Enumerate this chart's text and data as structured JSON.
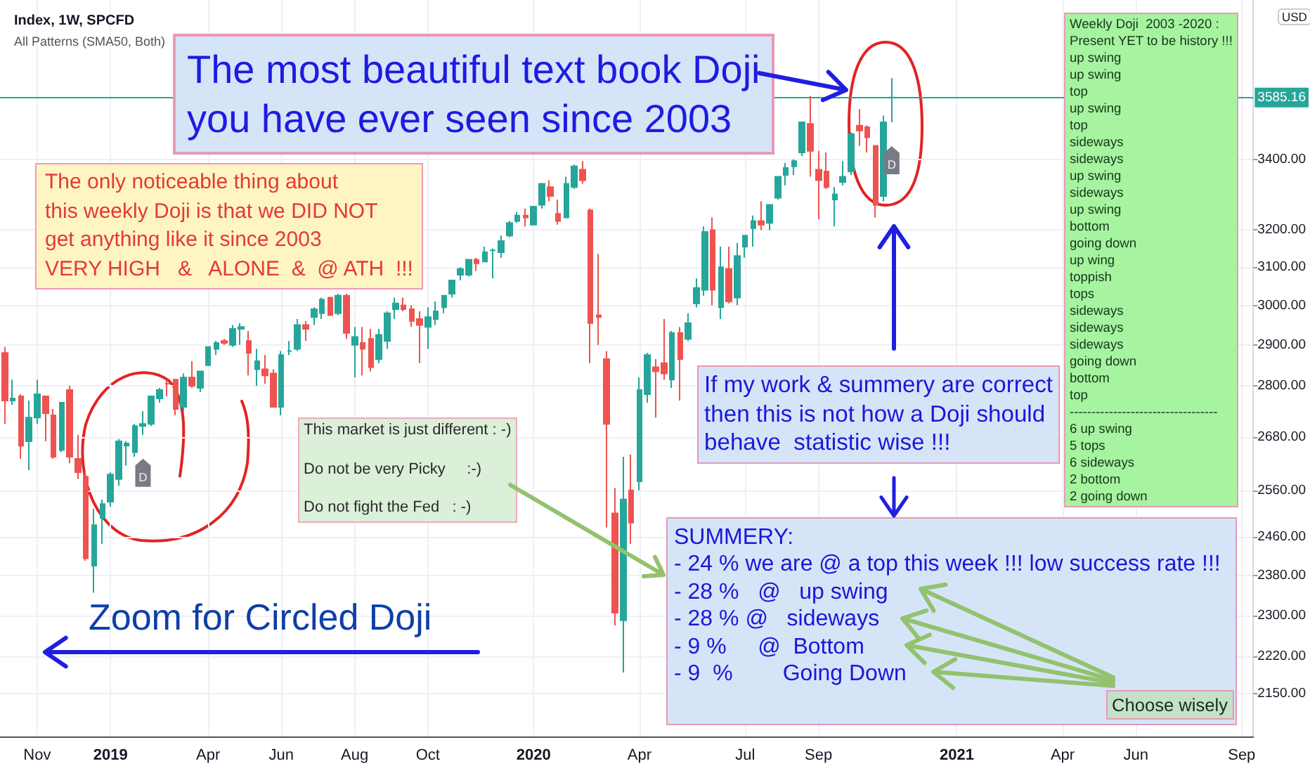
{
  "chart_data": {
    "type": "candlestick",
    "title": "Index, 1W, SPCFD",
    "subtitle": "All Patterns (SMA50, Both)",
    "ylabel": "USD",
    "x": [
      "2018-10-08",
      "2018-10-15",
      "2018-10-22",
      "2018-10-29",
      "2018-11-05",
      "2018-11-12",
      "2018-11-19",
      "2018-11-26",
      "2018-12-03",
      "2018-12-10",
      "2018-12-17",
      "2018-12-24",
      "2018-12-31",
      "2019-01-07",
      "2019-01-14",
      "2019-01-21",
      "2019-01-28",
      "2019-02-04",
      "2019-02-11",
      "2019-02-18",
      "2019-02-25",
      "2019-03-04",
      "2019-03-11",
      "2019-03-18",
      "2019-03-25",
      "2019-04-01",
      "2019-04-08",
      "2019-04-15",
      "2019-04-22",
      "2019-04-29",
      "2019-05-06",
      "2019-05-13",
      "2019-05-20",
      "2019-05-27",
      "2019-06-03",
      "2019-06-10",
      "2019-06-17",
      "2019-06-24",
      "2019-07-01",
      "2019-07-08",
      "2019-07-15",
      "2019-07-22",
      "2019-07-29",
      "2019-08-05",
      "2019-08-12",
      "2019-08-19",
      "2019-08-26",
      "2019-09-02",
      "2019-09-09",
      "2019-09-16",
      "2019-09-23",
      "2019-09-30",
      "2019-10-07",
      "2019-10-14",
      "2019-10-21",
      "2019-10-28",
      "2019-11-04",
      "2019-11-11",
      "2019-11-18",
      "2019-11-25",
      "2019-12-02",
      "2019-12-09",
      "2019-12-16",
      "2019-12-23",
      "2019-12-30",
      "2020-01-06",
      "2020-01-13",
      "2020-01-20",
      "2020-01-27",
      "2020-02-03",
      "2020-02-10",
      "2020-02-17",
      "2020-02-24",
      "2020-03-02",
      "2020-03-09",
      "2020-03-16",
      "2020-03-23",
      "2020-03-30",
      "2020-04-06",
      "2020-04-13",
      "2020-04-20",
      "2020-04-27",
      "2020-05-04",
      "2020-05-11",
      "2020-05-18",
      "2020-05-25",
      "2020-06-01",
      "2020-06-08",
      "2020-06-15",
      "2020-06-22",
      "2020-06-29",
      "2020-07-06",
      "2020-07-13",
      "2020-07-20",
      "2020-07-27",
      "2020-08-03",
      "2020-08-10",
      "2020-08-17",
      "2020-08-24",
      "2020-08-31",
      "2020-09-07",
      "2020-09-14",
      "2020-09-21",
      "2020-09-28",
      "2020-10-05",
      "2020-10-12",
      "2020-10-19",
      "2020-10-26",
      "2020-11-02",
      "2020-11-09"
    ],
    "ohlc": [
      [
        2880,
        2895,
        2710,
        2765
      ],
      [
        2765,
        2815,
        2755,
        2770
      ],
      [
        2775,
        2780,
        2630,
        2660
      ],
      [
        2670,
        2765,
        2605,
        2725
      ],
      [
        2725,
        2815,
        2710,
        2780
      ],
      [
        2775,
        2775,
        2670,
        2735
      ],
      [
        2730,
        2745,
        2630,
        2635
      ],
      [
        2650,
        2760,
        2645,
        2760
      ],
      [
        2790,
        2800,
        2620,
        2635
      ],
      [
        2630,
        2685,
        2585,
        2600
      ],
      [
        2590,
        2600,
        2410,
        2415
      ],
      [
        2400,
        2520,
        2345,
        2485
      ],
      [
        2500,
        2540,
        2445,
        2530
      ],
      [
        2535,
        2600,
        2525,
        2595
      ],
      [
        2585,
        2675,
        2570,
        2670
      ],
      [
        2660,
        2670,
        2615,
        2665
      ],
      [
        2645,
        2710,
        2635,
        2705
      ],
      [
        2705,
        2740,
        2685,
        2710
      ],
      [
        2710,
        2775,
        2705,
        2775
      ],
      [
        2770,
        2795,
        2760,
        2790
      ],
      [
        2805,
        2815,
        2775,
        2805
      ],
      [
        2815,
        2815,
        2730,
        2745
      ],
      [
        2750,
        2830,
        2740,
        2820
      ],
      [
        2820,
        2860,
        2795,
        2800
      ],
      [
        2795,
        2835,
        2785,
        2835
      ],
      [
        2850,
        2895,
        2850,
        2895
      ],
      [
        2890,
        2910,
        2875,
        2905
      ],
      [
        2910,
        2915,
        2900,
        2905
      ],
      [
        2900,
        2950,
        2895,
        2940
      ],
      [
        2940,
        2955,
        2900,
        2945
      ],
      [
        2910,
        2935,
        2825,
        2880
      ],
      [
        2840,
        2890,
        2800,
        2860
      ],
      [
        2840,
        2875,
        2805,
        2825
      ],
      [
        2830,
        2840,
        2750,
        2750
      ],
      [
        2750,
        2885,
        2730,
        2875
      ],
      [
        2885,
        2910,
        2875,
        2885
      ],
      [
        2890,
        2965,
        2885,
        2950
      ],
      [
        2950,
        2960,
        2910,
        2940
      ],
      [
        2970,
        2995,
        2950,
        2990
      ],
      [
        2980,
        3020,
        2965,
        3015
      ],
      [
        3020,
        3020,
        2975,
        2975
      ],
      [
        2980,
        3030,
        2975,
        3025
      ],
      [
        3025,
        3030,
        2915,
        2930
      ],
      [
        2900,
        2945,
        2820,
        2920
      ],
      [
        2905,
        2945,
        2825,
        2890
      ],
      [
        2915,
        2940,
        2835,
        2845
      ],
      [
        2865,
        2940,
        2855,
        2925
      ],
      [
        2910,
        2985,
        2890,
        2980
      ],
      [
        2990,
        3020,
        2965,
        3005
      ],
      [
        3000,
        3020,
        2985,
        2990
      ],
      [
        2990,
        3000,
        2945,
        2960
      ],
      [
        2965,
        2985,
        2855,
        2950
      ],
      [
        2945,
        2995,
        2890,
        2970
      ],
      [
        2965,
        3010,
        2950,
        2985
      ],
      [
        2995,
        3025,
        2980,
        3025
      ],
      [
        3030,
        3065,
        3020,
        3065
      ],
      [
        3080,
        3100,
        3065,
        3095
      ],
      [
        3080,
        3120,
        3075,
        3120
      ],
      [
        3120,
        3125,
        3090,
        3110
      ],
      [
        3115,
        3155,
        3115,
        3140
      ],
      [
        3145,
        3150,
        3070,
        3145
      ],
      [
        3140,
        3185,
        3125,
        3170
      ],
      [
        3185,
        3225,
        3180,
        3220
      ],
      [
        3225,
        3250,
        3220,
        3240
      ],
      [
        3240,
        3260,
        3210,
        3235
      ],
      [
        3215,
        3265,
        3215,
        3265
      ],
      [
        3270,
        3330,
        3260,
        3330
      ],
      [
        3320,
        3340,
        3280,
        3295
      ],
      [
        3245,
        3285,
        3215,
        3225
      ],
      [
        3235,
        3350,
        3235,
        3330
      ],
      [
        3320,
        3385,
        3315,
        3380
      ],
      [
        3370,
        3395,
        3330,
        3340
      ],
      [
        3255,
        3260,
        2855,
        2955
      ],
      [
        2975,
        3135,
        2900,
        2970
      ],
      [
        2865,
        2885,
        2480,
        2710
      ],
      [
        2510,
        2565,
        2280,
        2305
      ],
      [
        2290,
        2635,
        2190,
        2540
      ],
      [
        2560,
        2640,
        2445,
        2490
      ],
      [
        2580,
        2820,
        2560,
        2790
      ],
      [
        2780,
        2880,
        2760,
        2875
      ],
      [
        2845,
        2865,
        2725,
        2835
      ],
      [
        2855,
        2965,
        2815,
        2830
      ],
      [
        2815,
        2935,
        2795,
        2930
      ],
      [
        2930,
        2945,
        2765,
        2865
      ],
      [
        2915,
        2980,
        2910,
        2955
      ],
      [
        3005,
        3070,
        2995,
        3045
      ],
      [
        3040,
        3210,
        3025,
        3195
      ],
      [
        3200,
        3235,
        3000,
        3040
      ],
      [
        2995,
        3155,
        2965,
        3100
      ],
      [
        3095,
        3155,
        3005,
        3010
      ],
      [
        3020,
        3165,
        3000,
        3130
      ],
      [
        3155,
        3185,
        3125,
        3185
      ],
      [
        3205,
        3240,
        3155,
        3225
      ],
      [
        3225,
        3280,
        3200,
        3215
      ],
      [
        3220,
        3270,
        3200,
        3270
      ],
      [
        3290,
        3350,
        3285,
        3350
      ],
      [
        3355,
        3390,
        3325,
        3375
      ],
      [
        3380,
        3400,
        3355,
        3395
      ],
      [
        3420,
        3510,
        3410,
        3510
      ],
      [
        3505,
        3590,
        3350,
        3425
      ],
      [
        3370,
        3425,
        3230,
        3340
      ],
      [
        3365,
        3420,
        3315,
        3320
      ],
      [
        3285,
        3320,
        3210,
        3300
      ],
      [
        3335,
        3395,
        3325,
        3350
      ],
      [
        3365,
        3480,
        3355,
        3475
      ],
      [
        3500,
        3550,
        3440,
        3485
      ],
      [
        3495,
        3500,
        3420,
        3465
      ],
      [
        3440,
        3440,
        3235,
        3270
      ],
      [
        3295,
        3530,
        3280,
        3510
      ],
      [
        3585,
        3645,
        3510,
        3585.16
      ]
    ],
    "colors": [
      "#ef5350",
      "#26a69a",
      "#ef5350",
      "#26a69a",
      "#26a69a",
      "#ef5350",
      "#ef5350",
      "#26a69a",
      "#ef5350",
      "#ef5350",
      "#ef5350",
      "#26a69a",
      "#26a69a",
      "#26a69a",
      "#26a69a",
      "#26a69a",
      "#26a69a",
      "#26a69a",
      "#26a69a",
      "#26a69a",
      "#ef5350",
      "#ef5350",
      "#26a69a",
      "#ef5350",
      "#26a69a",
      "#26a69a",
      "#26a69a",
      "#ef5350",
      "#26a69a",
      "#26a69a",
      "#ef5350",
      "#26a69a",
      "#ef5350",
      "#ef5350",
      "#26a69a",
      "#26a69a",
      "#26a69a",
      "#ef5350",
      "#26a69a",
      "#26a69a",
      "#ef5350",
      "#26a69a",
      "#ef5350",
      "#26a69a",
      "#ef5350",
      "#ef5350",
      "#26a69a",
      "#26a69a",
      "#26a69a",
      "#ef5350",
      "#ef5350",
      "#ef5350",
      "#26a69a",
      "#26a69a",
      "#26a69a",
      "#26a69a",
      "#26a69a",
      "#26a69a",
      "#ef5350",
      "#26a69a",
      "#26a69a",
      "#26a69a",
      "#26a69a",
      "#26a69a",
      "#ef5350",
      "#26a69a",
      "#26a69a",
      "#ef5350",
      "#ef5350",
      "#26a69a",
      "#26a69a",
      "#ef5350",
      "#ef5350",
      "#ef5350",
      "#ef5350",
      "#ef5350",
      "#26a69a",
      "#ef5350",
      "#26a69a",
      "#26a69a",
      "#ef5350",
      "#ef5350",
      "#26a69a",
      "#ef5350",
      "#26a69a",
      "#26a69a",
      "#26a69a",
      "#ef5350",
      "#26a69a",
      "#ef5350",
      "#26a69a",
      "#26a69a",
      "#26a69a",
      "#ef5350",
      "#26a69a",
      "#26a69a",
      "#26a69a",
      "#26a69a",
      "#26a69a",
      "#ef5350",
      "#ef5350",
      "#ef5350",
      "#26a69a",
      "#26a69a",
      "#26a69a",
      "#ef5350",
      "#ef5350",
      "#ef5350",
      "#26a69a",
      "#26a69a"
    ],
    "xlim": [
      "2018-10-04",
      "2021-09-16"
    ],
    "xticks": [
      {
        "value": "2018-11-05",
        "label": "Nov"
      },
      {
        "value": "2019-01-07",
        "label": "2019"
      },
      {
        "value": "2019-04-01",
        "label": "Apr"
      },
      {
        "value": "2019-06-03",
        "label": "Jun"
      },
      {
        "value": "2019-08-05",
        "label": "Aug"
      },
      {
        "value": "2019-10-07",
        "label": "Oct"
      },
      {
        "value": "2020-01-06",
        "label": "2020"
      },
      {
        "value": "2020-04-06",
        "label": "Apr"
      },
      {
        "value": "2020-07-06",
        "label": "Jul"
      },
      {
        "value": "2020-09-07",
        "label": "Sep"
      },
      {
        "value": "2021-01-04",
        "label": "2021"
      },
      {
        "value": "2021-04-05",
        "label": "Apr"
      },
      {
        "value": "2021-06-07",
        "label": "Jun"
      },
      {
        "value": "2021-09-06",
        "label": "Sep"
      }
    ],
    "ylim": [
      2073,
      3898
    ],
    "log": true,
    "yticks": [
      {
        "value": 3400,
        "label": "3400.00"
      },
      {
        "value": 3200,
        "label": "3200.00"
      },
      {
        "value": 3100,
        "label": "3100.00"
      },
      {
        "value": 3000,
        "label": "3000.00"
      },
      {
        "value": 2900,
        "label": "2900.00"
      },
      {
        "value": 2800,
        "label": "2800.00"
      },
      {
        "value": 2680,
        "label": "2680.00"
      },
      {
        "value": 2560,
        "label": "2560.00"
      },
      {
        "value": 2460,
        "label": "2460.00"
      },
      {
        "value": 2380,
        "label": "2380.00"
      },
      {
        "value": 2300,
        "label": "2300.00"
      },
      {
        "value": 2220,
        "label": "2220.00"
      },
      {
        "value": 2150,
        "label": "2150.00"
      }
    ],
    "grid": true,
    "ref_lines": [
      {
        "axis": "y",
        "value": 3585.16,
        "label": "3585.16",
        "color": "#26a69a",
        "line_style": "solid"
      }
    ],
    "annotations": [
      "The most beautiful text book Doji\nyou have ever seen since 2003",
      "The only noticeable thing about\nthis weekly Doji is that we DID NOT\nget anything like it since 2003\nVERY HIGH   &   ALONE  &  @ ATH  !!!",
      "Weekly Doji  2003 -2020 :\nPresent YET to be history !!!\nup swing\nup swing\ntop\nup swing\ntop\nsideways\nsideways\nup swing\nsideways\nup swing\nbottom\ngoing down\nup wing\ntoppish\ntops\nsideways\nsideways\nsideways\ngoing down\nbottom\ntop\n----------------------------------\n6 up swing\n5 tops\n6 sideways\n2 bottom\n2 going down",
      "This market is just different : -)\n\nDo not be very Picky     :-)\n\nDo not fight the Fed   : -)",
      "If my work & summery are correct\nthen this is not how a Doji should\nbehave  statistic wise !!!",
      "SUMMERY:\n- 24 % we are @ a top this week !!! low success rate !!!\n- 28 %   @   up swing\n- 28 % @   sideways\n- 9 %     @  Bottom\n- 9  %        Going Down",
      "Zoom for Circled Doji",
      "Choose wisely",
      {
        "text": "D",
        "x": "2019-02-04",
        "y": 2685
      },
      {
        "text": "D",
        "x": "2020-11-09",
        "y": 3510
      }
    ]
  }
}
